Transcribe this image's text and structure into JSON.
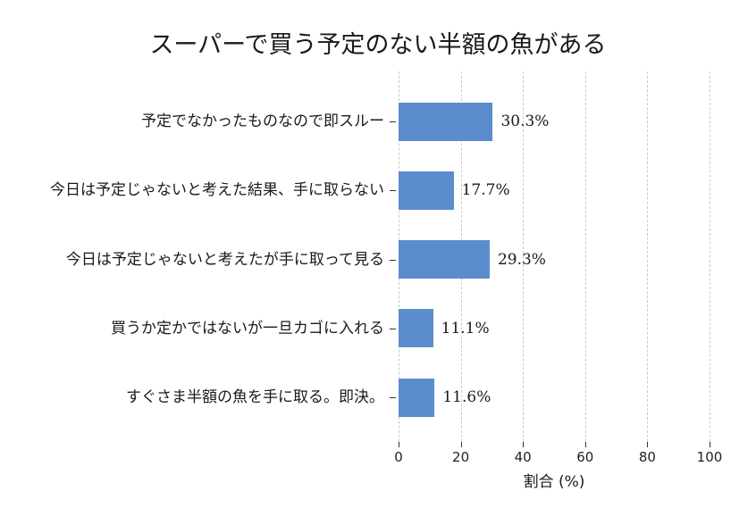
{
  "chart_data": {
    "type": "bar",
    "orientation": "horizontal",
    "title": "スーパーで買う予定のない半額の魚がある",
    "xlabel": "割合 (%)",
    "categories": [
      "予定でなかったものなので即スルー",
      "今日は予定じゃないと考えた結果、手に取らない",
      "今日は予定じゃないと考えたが手に取って見る",
      "買うか定かではないが一旦カゴに入れる",
      "すぐさま半額の魚を手に取る。即決。"
    ],
    "values": [
      30.3,
      17.7,
      29.3,
      11.1,
      11.6
    ],
    "value_labels": [
      "30.3%",
      "17.7%",
      "29.3%",
      "11.1%",
      "11.6%"
    ],
    "xlim": [
      0,
      100
    ],
    "xticks": [
      0,
      20,
      40,
      60,
      80,
      100
    ],
    "grid": "vertical dashed gridlines at every x tick, no axis spines",
    "legend": "none",
    "bar_color": "#5b8ccd",
    "grid_color": "#c9c9c9",
    "tick_color": "#333333",
    "text_color": "#1a1a1a"
  }
}
